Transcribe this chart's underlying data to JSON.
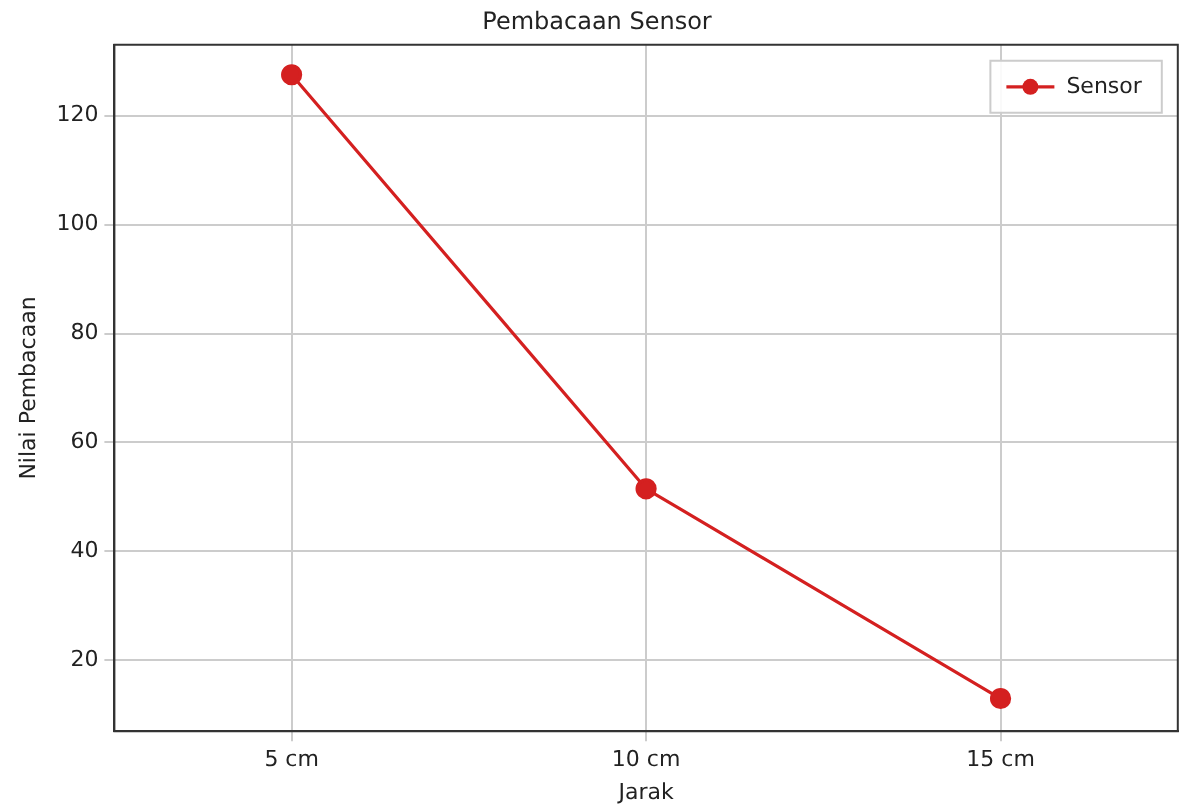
{
  "chart_data": {
    "type": "line",
    "title": "Pembacaan Sensor",
    "xlabel": "Jarak",
    "ylabel": "Nilai Pembacaan",
    "categories": [
      "5 cm",
      "10 cm",
      "15 cm"
    ],
    "series": [
      {
        "name": "Sensor",
        "color": "#d42020",
        "values": [
          127.5,
          51.5,
          13
        ]
      }
    ],
    "ylim": [
      7,
      133
    ],
    "yticks": [
      20,
      40,
      60,
      80,
      100,
      120
    ],
    "grid": true,
    "legend": "top right",
    "marker": "circle",
    "line_style": "solid"
  }
}
